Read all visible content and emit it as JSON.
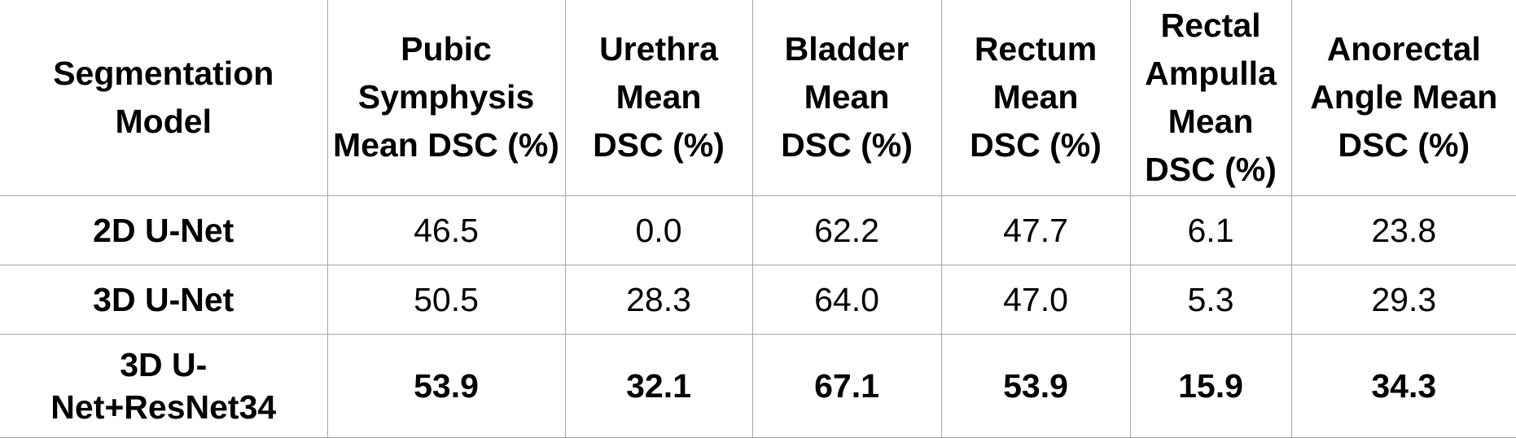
{
  "table": {
    "headers": [
      "Segmentation Model",
      "Pubic Symphysis Mean DSC (%)",
      "Urethra Mean DSC (%)",
      "Bladder Mean DSC (%)",
      "Rectum Mean DSC (%)",
      "Rectal Ampulla Mean DSC (%)",
      "Anorectal Angle Mean DSC (%)"
    ],
    "rows": [
      {
        "cells": [
          "2D U-Net",
          "46.5",
          "0.0",
          "62.2",
          "47.7",
          "6.1",
          "23.8"
        ]
      },
      {
        "cells": [
          "3D U-Net",
          "50.5",
          "28.3",
          "64.0",
          "47.0",
          "5.3",
          "29.3"
        ]
      },
      {
        "cells": [
          "3D U-Net+ResNet34",
          "53.9",
          "32.1",
          "67.1",
          "53.9",
          "15.9",
          "34.3"
        ]
      }
    ]
  }
}
